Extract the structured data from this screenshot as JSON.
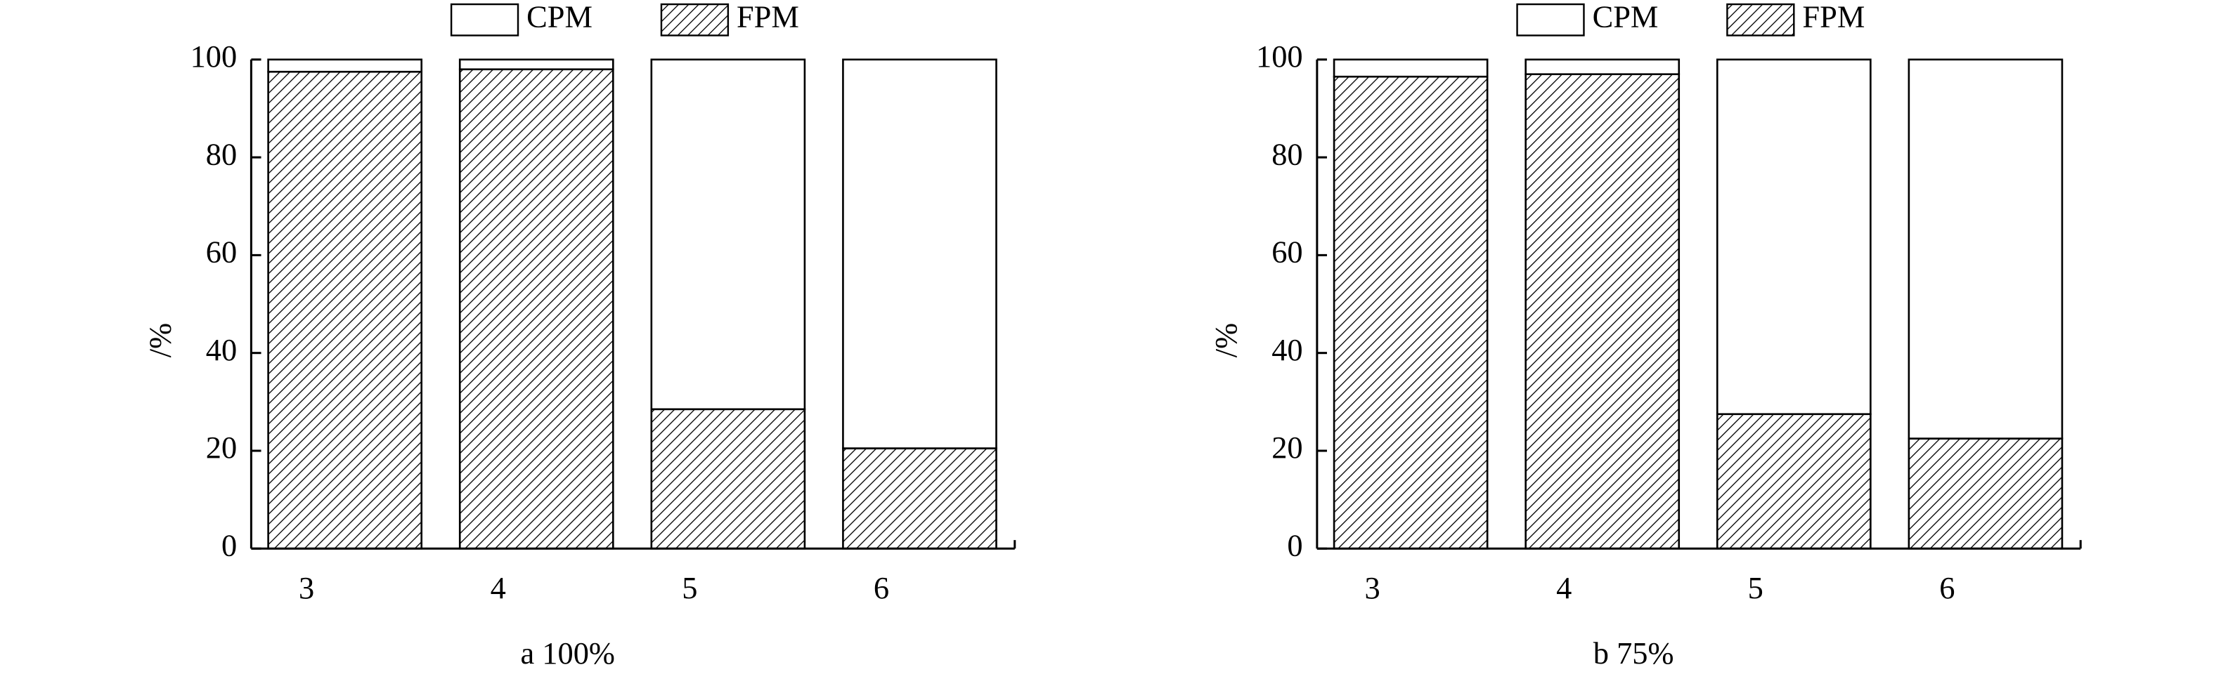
{
  "chart_data": [
    {
      "type": "bar",
      "stacked": true,
      "xlabel": "a 100%",
      "ylabel": "/%",
      "categories": [
        "3",
        "4",
        "5",
        "6"
      ],
      "series": [
        {
          "name": "CPM",
          "color": "#ffffff",
          "values": [
            2.5,
            2,
            71.5,
            79.5
          ]
        },
        {
          "name": "FPM",
          "color": "#000000",
          "fill": "hatch",
          "values": [
            97.5,
            98,
            28.5,
            20.5
          ]
        }
      ],
      "ylim": [
        0,
        100
      ],
      "yticks": [
        0,
        20,
        40,
        60,
        80,
        100
      ]
    },
    {
      "type": "bar",
      "stacked": true,
      "xlabel": "b 75%",
      "ylabel": "/%",
      "categories": [
        "3",
        "4",
        "5",
        "6"
      ],
      "series": [
        {
          "name": "CPM",
          "color": "#ffffff",
          "values": [
            3.5,
            3,
            72.5,
            77.5
          ]
        },
        {
          "name": "FPM",
          "color": "#000000",
          "fill": "hatch",
          "values": [
            96.5,
            97,
            27.5,
            22.5
          ]
        }
      ],
      "ylim": [
        0,
        100
      ],
      "yticks": [
        0,
        20,
        40,
        60,
        80,
        100
      ]
    }
  ]
}
